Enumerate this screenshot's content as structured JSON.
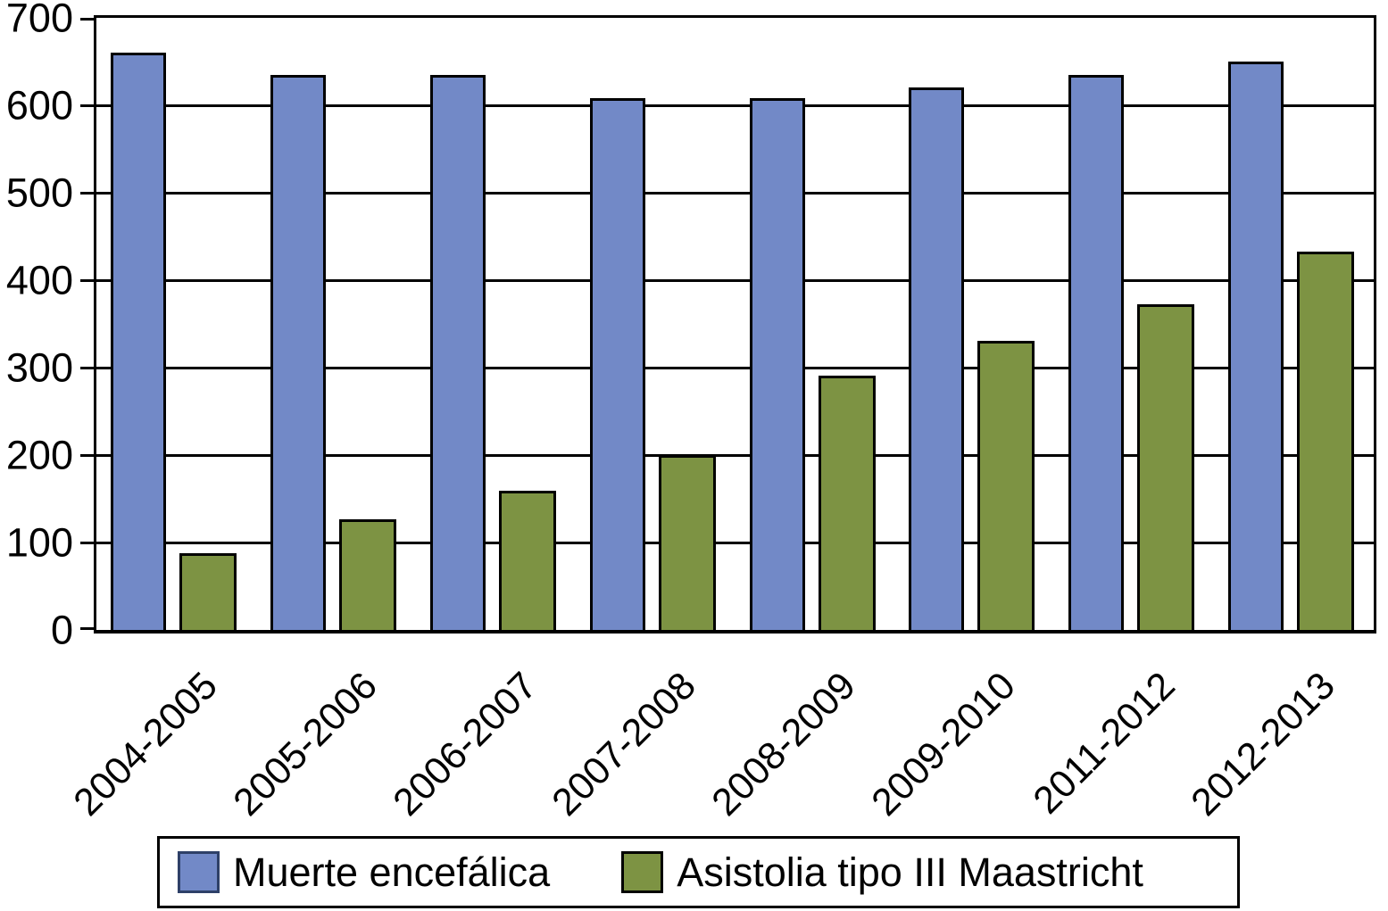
{
  "chart_data": {
    "type": "bar",
    "title": "",
    "xlabel": "",
    "ylabel": "",
    "categories": [
      "2004-2005",
      "2005-2006",
      "2006-2007",
      "2007-2008",
      "2008-2009",
      "2009-2010",
      "2011-2012",
      "2012-2013"
    ],
    "series": [
      {
        "name": "Muerte encefálica",
        "color": "#7289c7",
        "swatch_border_color": "#2e4068",
        "values": [
          660,
          635,
          635,
          608,
          608,
          620,
          635,
          650
        ]
      },
      {
        "name": "Asistolia tipo III Maastricht",
        "color": "#7d9343",
        "swatch_border_color": "#000000",
        "values": [
          88,
          127,
          159,
          200,
          291,
          331,
          372,
          433
        ]
      }
    ],
    "ylim": [
      0,
      700
    ],
    "yticks": [
      0,
      100,
      200,
      300,
      400,
      500,
      600,
      700
    ],
    "grid": "horizontal-every-100",
    "bar_border_color": "#000000",
    "axis_color": "#000000",
    "legend_position": "bottom",
    "xtick_rotation_deg": 45
  }
}
